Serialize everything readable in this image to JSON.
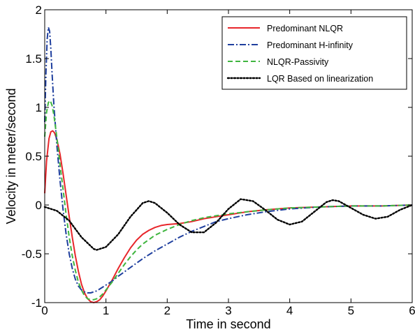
{
  "chart_data": {
    "type": "line",
    "title": "",
    "xlabel": "Time in second",
    "ylabel": "Velocity in meter/second",
    "xlim": [
      0,
      6
    ],
    "ylim": [
      -1,
      2
    ],
    "xticks": [
      0,
      1,
      2,
      3,
      4,
      5,
      6
    ],
    "yticks": [
      -1,
      -0.5,
      0,
      0.5,
      1,
      1.5,
      2
    ],
    "xtick_labels": [
      "0",
      "1",
      "2",
      "3",
      "4",
      "5",
      "6"
    ],
    "ytick_labels": [
      "-1",
      "-0.5",
      "0",
      "0.5",
      "1",
      "1.5",
      "2"
    ],
    "grid": false,
    "legend_position": "top-right",
    "series": [
      {
        "name": "Predominant NLQR",
        "color": "#e8262b",
        "dash": "solid",
        "x": [
          0,
          0.03,
          0.07,
          0.1,
          0.13,
          0.16,
          0.2,
          0.25,
          0.3,
          0.35,
          0.4,
          0.45,
          0.5,
          0.55,
          0.6,
          0.65,
          0.7,
          0.75,
          0.8,
          0.85,
          0.9,
          0.95,
          1.0,
          1.1,
          1.2,
          1.3,
          1.4,
          1.5,
          1.6,
          1.7,
          1.8,
          1.9,
          2.0,
          2.2,
          2.4,
          2.6,
          2.8,
          3.0,
          3.3,
          3.6,
          4.0,
          4.5,
          5.0,
          5.5,
          6.0
        ],
        "y": [
          0.12,
          0.45,
          0.68,
          0.75,
          0.76,
          0.74,
          0.67,
          0.52,
          0.32,
          0.1,
          -0.12,
          -0.33,
          -0.52,
          -0.68,
          -0.81,
          -0.9,
          -0.96,
          -0.99,
          -1.0,
          -0.99,
          -0.97,
          -0.93,
          -0.88,
          -0.77,
          -0.65,
          -0.54,
          -0.44,
          -0.36,
          -0.3,
          -0.26,
          -0.23,
          -0.21,
          -0.2,
          -0.19,
          -0.17,
          -0.14,
          -0.12,
          -0.1,
          -0.07,
          -0.05,
          -0.03,
          -0.02,
          -0.01,
          -0.01,
          0.0
        ]
      },
      {
        "name": "Predominant H-infinity",
        "color": "#1f3f9e",
        "dash": "dashdot",
        "x": [
          0,
          0.02,
          0.04,
          0.06,
          0.08,
          0.1,
          0.12,
          0.15,
          0.2,
          0.25,
          0.3,
          0.35,
          0.4,
          0.45,
          0.5,
          0.55,
          0.6,
          0.65,
          0.7,
          0.75,
          0.8,
          0.85,
          0.9,
          0.95,
          1.0,
          1.1,
          1.2,
          1.4,
          1.6,
          1.8,
          2.0,
          2.2,
          2.4,
          2.6,
          2.8,
          3.0,
          3.3,
          3.6,
          4.0,
          4.5,
          5.0,
          5.5,
          6.0
        ],
        "y": [
          0.85,
          1.35,
          1.7,
          1.82,
          1.78,
          1.6,
          1.35,
          1.02,
          0.6,
          0.25,
          -0.05,
          -0.3,
          -0.5,
          -0.65,
          -0.76,
          -0.83,
          -0.87,
          -0.89,
          -0.9,
          -0.9,
          -0.89,
          -0.88,
          -0.86,
          -0.84,
          -0.82,
          -0.78,
          -0.73,
          -0.64,
          -0.55,
          -0.47,
          -0.4,
          -0.33,
          -0.27,
          -0.22,
          -0.17,
          -0.14,
          -0.1,
          -0.07,
          -0.04,
          -0.02,
          -0.01,
          -0.01,
          0.0
        ]
      },
      {
        "name": "NLQR-Passivity",
        "color": "#3fb53f",
        "dash": "dashed",
        "x": [
          0,
          0.03,
          0.06,
          0.09,
          0.12,
          0.15,
          0.18,
          0.22,
          0.26,
          0.3,
          0.35,
          0.4,
          0.45,
          0.5,
          0.55,
          0.6,
          0.65,
          0.7,
          0.75,
          0.8,
          0.85,
          0.9,
          0.95,
          1.0,
          1.1,
          1.2,
          1.3,
          1.4,
          1.5,
          1.6,
          1.8,
          2.0,
          2.2,
          2.4,
          2.6,
          2.8,
          3.0,
          3.3,
          3.6,
          4.0,
          4.5,
          5.0,
          5.5,
          6.0
        ],
        "y": [
          0.7,
          0.95,
          1.05,
          1.07,
          1.02,
          0.92,
          0.78,
          0.58,
          0.36,
          0.16,
          -0.1,
          -0.33,
          -0.52,
          -0.67,
          -0.79,
          -0.87,
          -0.93,
          -0.96,
          -0.97,
          -0.97,
          -0.96,
          -0.94,
          -0.91,
          -0.87,
          -0.79,
          -0.7,
          -0.61,
          -0.53,
          -0.46,
          -0.4,
          -0.31,
          -0.25,
          -0.2,
          -0.16,
          -0.13,
          -0.11,
          -0.09,
          -0.07,
          -0.05,
          -0.03,
          -0.02,
          -0.01,
          -0.01,
          0.0
        ]
      },
      {
        "name": "LQR Based on linearization",
        "color": "#000000",
        "dash": "dotted",
        "x": [
          0,
          0.2,
          0.4,
          0.6,
          0.8,
          0.85,
          1.0,
          1.2,
          1.4,
          1.6,
          1.7,
          1.8,
          2.0,
          2.2,
          2.4,
          2.6,
          2.8,
          3.0,
          3.2,
          3.4,
          3.6,
          3.8,
          4.0,
          4.2,
          4.4,
          4.6,
          4.7,
          4.8,
          5.0,
          5.2,
          5.4,
          5.6,
          5.8,
          6.0
        ],
        "y": [
          -0.02,
          -0.06,
          -0.16,
          -0.33,
          -0.45,
          -0.46,
          -0.43,
          -0.3,
          -0.12,
          0.02,
          0.04,
          0.02,
          -0.08,
          -0.2,
          -0.28,
          -0.28,
          -0.18,
          -0.04,
          0.06,
          0.04,
          -0.05,
          -0.15,
          -0.2,
          -0.17,
          -0.07,
          0.03,
          0.05,
          0.04,
          -0.03,
          -0.1,
          -0.14,
          -0.12,
          -0.05,
          0.0
        ]
      }
    ]
  }
}
